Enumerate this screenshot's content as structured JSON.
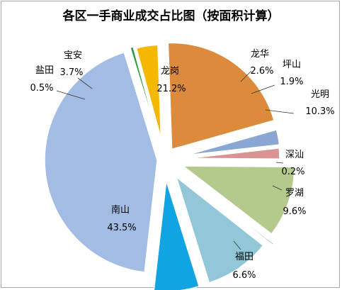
{
  "chart_data": {
    "type": "pie",
    "title": "各区一手商业成交占比图（按面积计算）",
    "slices": [
      {
        "name": "龙岗",
        "value": 21.2,
        "pct": "21.2%",
        "color": "#dc8a3c"
      },
      {
        "name": "龙华",
        "value": 2.6,
        "pct": "2.6%",
        "color": "#8aa7d4"
      },
      {
        "name": "坪山",
        "value": 1.9,
        "pct": "1.9%",
        "color": "#d89392"
      },
      {
        "name": "光明",
        "value": 10.3,
        "pct": "10.3%",
        "color": "#b4c98c"
      },
      {
        "name": "深汕",
        "value": 0.2,
        "pct": "0.2%",
        "color": "#9d92b6"
      },
      {
        "name": "罗湖",
        "value": 9.6,
        "pct": "9.6%",
        "color": "#92c7d8"
      },
      {
        "name": "福田",
        "value": 6.6,
        "pct": "6.6%",
        "color": "#11a4e2"
      },
      {
        "name": "南山",
        "value": 43.5,
        "pct": "43.5%",
        "color": "#a2bce4"
      },
      {
        "name": "盐田",
        "value": 0.5,
        "pct": "0.5%",
        "color": "#2a9b3c"
      },
      {
        "name": "宝安",
        "value": 3.7,
        "pct": "3.7%",
        "color": "#f4b800"
      }
    ]
  }
}
